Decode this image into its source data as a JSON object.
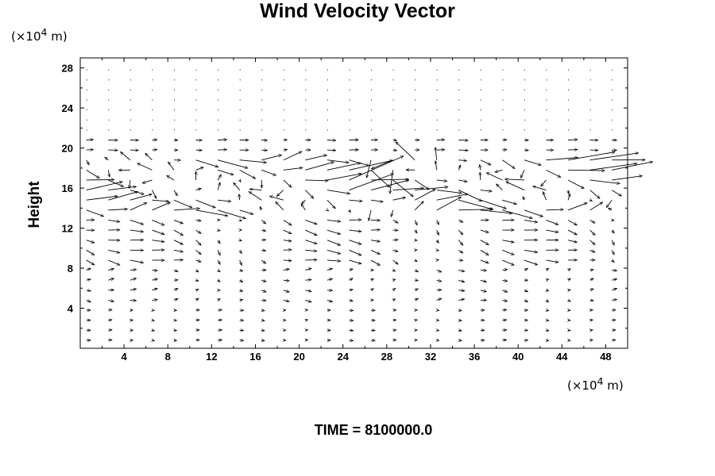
{
  "chart_data": {
    "type": "quiver",
    "title": "Wind Velocity Vector",
    "ylabel": "Height",
    "y_unit_prefix": "(×10",
    "y_unit_exp": "4",
    "y_unit_suffix": " m)",
    "x_unit_prefix": "(×10",
    "x_unit_exp": "4",
    "x_unit_suffix": " m)",
    "xlim": [
      0,
      50
    ],
    "ylim": [
      0,
      29
    ],
    "xticks": [
      4,
      8,
      12,
      16,
      20,
      24,
      28,
      32,
      36,
      40,
      44,
      48
    ],
    "yticks": [
      4,
      8,
      12,
      16,
      20,
      24,
      28
    ],
    "grid": false,
    "grid_x": [
      0.2,
      2.2,
      4.2,
      6.2,
      8.2,
      10.2,
      12.2,
      14.2,
      16.2,
      18.2,
      20.2,
      22.2,
      24.2,
      26.2,
      28.2,
      30.2,
      32.2,
      34.2,
      36.2,
      38.2,
      40.2,
      42.2,
      44.2,
      46.2,
      48.2
    ],
    "grid_y": [
      0.8,
      1.8,
      2.8,
      3.8,
      4.8,
      5.8,
      6.8,
      7.8,
      8.8,
      9.8,
      10.8,
      11.8,
      12.8,
      13.8,
      14.8,
      15.8,
      16.8,
      17.8,
      18.8,
      19.8,
      20.8,
      21.8,
      22.8,
      23.8,
      24.8,
      25.8,
      26.8,
      27.8
    ]
  },
  "footer": {
    "time_label": "TIME = 8100000.0"
  }
}
